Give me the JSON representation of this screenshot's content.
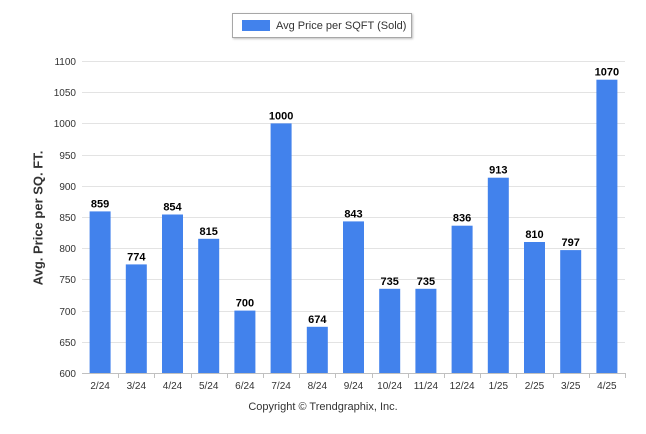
{
  "chart_data": {
    "type": "bar",
    "categories": [
      "2/24",
      "3/24",
      "4/24",
      "5/24",
      "6/24",
      "7/24",
      "8/24",
      "9/24",
      "10/24",
      "11/24",
      "12/24",
      "1/25",
      "2/25",
      "3/25",
      "4/25"
    ],
    "series": [
      {
        "name": "Avg Price per SQFT (Sold)",
        "values": [
          859,
          774,
          854,
          815,
          700,
          1000,
          674,
          843,
          735,
          735,
          836,
          913,
          810,
          797,
          1070
        ],
        "color": "#4282ec"
      }
    ],
    "ylabel": "Avg. Price per SQ. FT.",
    "xlabel": "",
    "ylim": [
      600,
      1100
    ],
    "yticks": [
      600,
      650,
      700,
      750,
      800,
      850,
      900,
      950,
      1000,
      1050,
      1100
    ],
    "grid": true,
    "legend_position": "top-center",
    "data_labels": true
  },
  "footer": {
    "copyright": "Copyright © Trendgraphix, Inc."
  }
}
